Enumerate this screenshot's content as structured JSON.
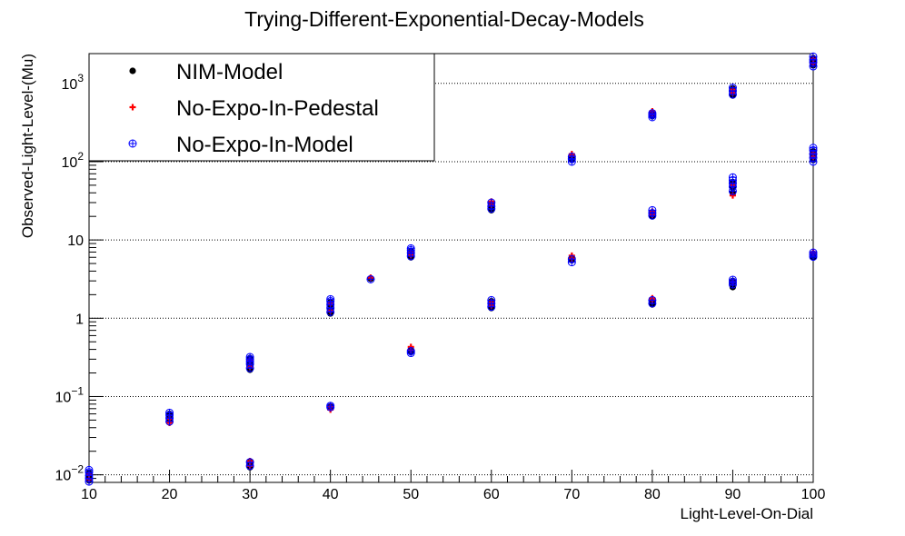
{
  "chart_data": {
    "type": "scatter",
    "title": "Trying-Different-Exponential-Decay-Models",
    "xlabel": "Light-Level-On-Dial",
    "ylabel": "Observed-Light-Level-(Mu)",
    "xlim": [
      10,
      100
    ],
    "ylim": [
      0.008,
      2400
    ],
    "y_scale": "log",
    "grid": "horizontal dotted lines at major y ticks",
    "legend_position": "top-left",
    "x_ticks": [
      {
        "value": 10,
        "label": "10"
      },
      {
        "value": 20,
        "label": "20"
      },
      {
        "value": 30,
        "label": "30"
      },
      {
        "value": 40,
        "label": "40"
      },
      {
        "value": 50,
        "label": "50"
      },
      {
        "value": 60,
        "label": "60"
      },
      {
        "value": 70,
        "label": "70"
      },
      {
        "value": 80,
        "label": "80"
      },
      {
        "value": 90,
        "label": "90"
      },
      {
        "value": 100,
        "label": "100"
      }
    ],
    "y_ticks": [
      {
        "value": 0.01,
        "base": "10",
        "exp": "−2"
      },
      {
        "value": 0.1,
        "base": "10",
        "exp": "−1"
      },
      {
        "value": 1,
        "base": "1",
        "exp": ""
      },
      {
        "value": 10,
        "base": "10",
        "exp": ""
      },
      {
        "value": 100,
        "base": "10",
        "exp": "2"
      },
      {
        "value": 1000,
        "base": "10",
        "exp": "3"
      }
    ],
    "series": [
      {
        "name": "NIM-Model",
        "marker": "filled-circle",
        "color": "#000000",
        "points": [
          [
            10,
            0.0085
          ],
          [
            10,
            0.0095
          ],
          [
            10,
            0.0105
          ],
          [
            20,
            0.05
          ],
          [
            20,
            0.055
          ],
          [
            20,
            0.06
          ],
          [
            30,
            0.0125
          ],
          [
            30,
            0.0135
          ],
          [
            30,
            0.0145
          ],
          [
            30,
            0.22
          ],
          [
            30,
            0.25
          ],
          [
            30,
            0.28
          ],
          [
            30,
            0.31
          ],
          [
            40,
            0.072
          ],
          [
            40,
            0.075
          ],
          [
            40,
            1.15
          ],
          [
            40,
            1.3
          ],
          [
            40,
            1.45
          ],
          [
            40,
            1.6
          ],
          [
            45,
            3.2
          ],
          [
            50,
            0.37
          ],
          [
            50,
            0.4
          ],
          [
            50,
            6.0
          ],
          [
            50,
            6.6
          ],
          [
            50,
            7.2
          ],
          [
            60,
            1.35
          ],
          [
            60,
            1.5
          ],
          [
            60,
            1.65
          ],
          [
            60,
            24
          ],
          [
            60,
            26.5
          ],
          [
            60,
            29
          ],
          [
            70,
            5.5
          ],
          [
            70,
            5.9
          ],
          [
            70,
            105
          ],
          [
            70,
            115
          ],
          [
            80,
            1.5
          ],
          [
            80,
            1.65
          ],
          [
            80,
            20
          ],
          [
            80,
            22.5
          ],
          [
            80,
            380
          ],
          [
            80,
            420
          ],
          [
            90,
            2.5
          ],
          [
            90,
            2.8
          ],
          [
            90,
            3.0
          ],
          [
            90,
            40
          ],
          [
            90,
            47
          ],
          [
            90,
            55
          ],
          [
            90,
            700
          ],
          [
            90,
            790
          ],
          [
            90,
            860
          ],
          [
            100,
            6.0
          ],
          [
            100,
            6.6
          ],
          [
            100,
            105
          ],
          [
            100,
            120
          ],
          [
            100,
            135
          ],
          [
            100,
            1700
          ],
          [
            100,
            1900
          ],
          [
            100,
            2100
          ]
        ]
      },
      {
        "name": "No-Expo-In-Pedestal",
        "marker": "plus",
        "color": "#ff0000",
        "points": [
          [
            10,
            0.0088
          ],
          [
            10,
            0.01
          ],
          [
            20,
            0.046
          ],
          [
            20,
            0.052
          ],
          [
            30,
            0.013
          ],
          [
            30,
            0.015
          ],
          [
            30,
            0.24
          ],
          [
            30,
            0.29
          ],
          [
            40,
            0.068
          ],
          [
            40,
            0.074
          ],
          [
            40,
            1.25
          ],
          [
            40,
            1.55
          ],
          [
            45,
            3.3
          ],
          [
            50,
            0.43
          ],
          [
            50,
            0.39
          ],
          [
            50,
            6.4
          ],
          [
            50,
            7.0
          ],
          [
            60,
            1.45
          ],
          [
            60,
            1.6
          ],
          [
            60,
            28
          ],
          [
            60,
            31
          ],
          [
            70,
            5.8
          ],
          [
            70,
            6.3
          ],
          [
            70,
            118
          ],
          [
            70,
            125
          ],
          [
            80,
            1.7
          ],
          [
            80,
            1.8
          ],
          [
            80,
            21
          ],
          [
            80,
            23
          ],
          [
            80,
            400
          ],
          [
            80,
            440
          ],
          [
            90,
            2.9
          ],
          [
            90,
            37
          ],
          [
            90,
            50
          ],
          [
            90,
            760
          ],
          [
            90,
            830
          ],
          [
            100,
            6.8
          ],
          [
            100,
            7.0
          ],
          [
            100,
            115
          ],
          [
            100,
            128
          ],
          [
            100,
            1800
          ],
          [
            100,
            2050
          ]
        ]
      },
      {
        "name": "No-Expo-In-Model",
        "marker": "open-circle-plus",
        "color": "#0000ff",
        "points": [
          [
            10,
            0.0082
          ],
          [
            10,
            0.009
          ],
          [
            10,
            0.0098
          ],
          [
            10,
            0.0108
          ],
          [
            10,
            0.0115
          ],
          [
            20,
            0.048
          ],
          [
            20,
            0.053
          ],
          [
            20,
            0.058
          ],
          [
            20,
            0.062
          ],
          [
            30,
            0.013
          ],
          [
            30,
            0.0145
          ],
          [
            30,
            0.23
          ],
          [
            30,
            0.26
          ],
          [
            30,
            0.28
          ],
          [
            30,
            0.3
          ],
          [
            30,
            0.32
          ],
          [
            40,
            0.073
          ],
          [
            40,
            0.076
          ],
          [
            40,
            1.2
          ],
          [
            40,
            1.35
          ],
          [
            40,
            1.5
          ],
          [
            40,
            1.65
          ],
          [
            40,
            1.75
          ],
          [
            45,
            3.15
          ],
          [
            50,
            0.36
          ],
          [
            50,
            0.38
          ],
          [
            50,
            6.2
          ],
          [
            50,
            6.8
          ],
          [
            50,
            7.4
          ],
          [
            50,
            7.8
          ],
          [
            60,
            1.4
          ],
          [
            60,
            1.55
          ],
          [
            60,
            1.7
          ],
          [
            60,
            25
          ],
          [
            60,
            27
          ],
          [
            60,
            30
          ],
          [
            70,
            5.2
          ],
          [
            70,
            5.7
          ],
          [
            70,
            100
          ],
          [
            70,
            108
          ],
          [
            70,
            116
          ],
          [
            80,
            1.55
          ],
          [
            80,
            1.7
          ],
          [
            80,
            20.5
          ],
          [
            80,
            22
          ],
          [
            80,
            24
          ],
          [
            80,
            370
          ],
          [
            80,
            395
          ],
          [
            80,
            415
          ],
          [
            90,
            2.7
          ],
          [
            90,
            2.9
          ],
          [
            90,
            3.1
          ],
          [
            90,
            42
          ],
          [
            90,
            48
          ],
          [
            90,
            53
          ],
          [
            90,
            58
          ],
          [
            90,
            63
          ],
          [
            90,
            720
          ],
          [
            90,
            800
          ],
          [
            90,
            880
          ],
          [
            100,
            6.1
          ],
          [
            100,
            6.5
          ],
          [
            100,
            6.9
          ],
          [
            100,
            100
          ],
          [
            100,
            112
          ],
          [
            100,
            125
          ],
          [
            100,
            140
          ],
          [
            100,
            150
          ],
          [
            100,
            1650
          ],
          [
            100,
            1850
          ],
          [
            100,
            2000
          ],
          [
            100,
            2200
          ]
        ]
      }
    ]
  }
}
